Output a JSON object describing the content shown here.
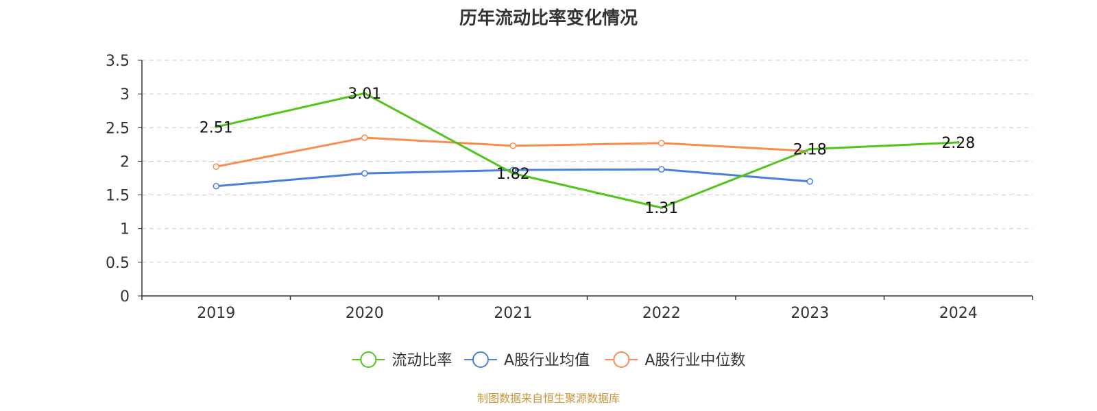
{
  "chart_data": {
    "type": "line",
    "title": "历年流动比率变化情况",
    "categories": [
      "2019",
      "2020",
      "2021",
      "2022",
      "2023",
      "2024"
    ],
    "ylim": [
      0,
      3.5
    ],
    "yticks": [
      "0",
      "0.5",
      "1",
      "1.5",
      "2",
      "2.5",
      "3",
      "3.5"
    ],
    "grid": true,
    "legend_position": "bottom",
    "series": [
      {
        "name": "流动比率",
        "color": "#52c41a",
        "values": [
          2.51,
          3.01,
          1.82,
          1.31,
          2.18,
          2.28
        ],
        "labels": [
          "2.51",
          "3.01",
          "1.82",
          "1.31",
          "2.18",
          "2.28"
        ]
      },
      {
        "name": "A股行业均值",
        "color": "#4a7fdb",
        "values": [
          1.63,
          1.82,
          1.87,
          1.88,
          1.7,
          null
        ]
      },
      {
        "name": "A股行业中位数",
        "color": "#fa8c50",
        "values": [
          1.92,
          2.35,
          2.23,
          2.27,
          2.15,
          null
        ]
      }
    ]
  },
  "footer": {
    "text": "制图数据来自恒生聚源数据库",
    "color": "#c8963c"
  }
}
